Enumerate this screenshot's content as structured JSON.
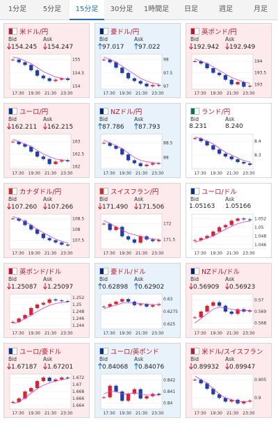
{
  "tabs": {
    "items": [
      "1分足",
      "5分足",
      "15分足",
      "30分足",
      "1時間足",
      "日足",
      "週足",
      "月足"
    ],
    "active": 2
  },
  "bid_label": "Bid",
  "ask_label": "Ask",
  "x_labels": [
    "17:30",
    "19:30",
    "21:30",
    "23:30"
  ],
  "cards": [
    {
      "name": "米ドル/円",
      "trend": "down",
      "bid": "154.245",
      "ask": "154.247",
      "ylim": [
        153.9,
        155.2
      ],
      "yticks": [
        155,
        154.5,
        154
      ],
      "closes": [
        155.0,
        154.9,
        154.8,
        154.6,
        154.4,
        154.3,
        154.2,
        154.25,
        154.3,
        154.24
      ],
      "ma": [
        155.1,
        155.05,
        154.95,
        154.85,
        154.7,
        154.55,
        154.45,
        154.35,
        154.3,
        154.28
      ]
    },
    {
      "name": "豪ドル/円",
      "trend": "up",
      "bid": "97.017",
      "ask": "97.022",
      "ylim": [
        96.9,
        98.2
      ],
      "yticks": [
        98,
        97.5,
        97
      ],
      "closes": [
        98.0,
        97.9,
        97.7,
        97.5,
        97.3,
        97.2,
        97.1,
        97.0,
        97.05,
        97.02
      ],
      "ma": [
        98.1,
        98.0,
        97.9,
        97.75,
        97.6,
        97.45,
        97.3,
        97.2,
        97.12,
        97.08
      ]
    },
    {
      "name": "英ポンド/円",
      "trend": "down",
      "bid": "192.942",
      "ask": "192.949",
      "ylim": [
        192.8,
        194.3
      ],
      "yticks": [
        194,
        193.5,
        193
      ],
      "closes": [
        194.0,
        193.9,
        193.7,
        193.5,
        193.4,
        193.2,
        193.0,
        193.1,
        192.9,
        192.94
      ],
      "ma": [
        194.1,
        194.0,
        193.9,
        193.75,
        193.6,
        193.45,
        193.3,
        193.2,
        193.1,
        193.05
      ]
    },
    {
      "name": "ユーロ/円",
      "trend": "down",
      "bid": "162.211",
      "ask": "162.215",
      "ylim": [
        161.9,
        163.3
      ],
      "yticks": [
        163,
        162.5,
        162
      ],
      "closes": [
        163.0,
        162.9,
        162.8,
        162.6,
        162.4,
        162.3,
        162.1,
        162.2,
        162.25,
        162.21
      ],
      "ma": [
        163.1,
        163.0,
        162.9,
        162.8,
        162.65,
        162.5,
        162.4,
        162.3,
        162.27,
        162.25
      ]
    },
    {
      "name": "NZドル/円",
      "trend": "up",
      "bid": "87.786",
      "ask": "87.793",
      "ylim": [
        87.6,
        88.8
      ],
      "yticks": [
        88.5,
        88
      ],
      "closes": [
        88.5,
        88.4,
        88.3,
        88.1,
        87.9,
        87.8,
        87.7,
        87.75,
        87.8,
        87.79
      ],
      "ma": [
        88.6,
        88.5,
        88.4,
        88.3,
        88.15,
        88.0,
        87.9,
        87.85,
        87.82,
        87.8
      ]
    },
    {
      "name": "ランド/円",
      "trend": "flat",
      "bid": "8.231",
      "ask": "8.240",
      "ylim": [
        8.2,
        8.45
      ],
      "yticks": [
        8.4,
        8.3
      ],
      "closes": [
        8.42,
        8.4,
        8.37,
        8.34,
        8.31,
        8.29,
        8.27,
        8.25,
        8.24,
        8.23
      ],
      "ma": [
        8.43,
        8.42,
        8.4,
        8.38,
        8.35,
        8.32,
        8.3,
        8.28,
        8.26,
        8.25
      ]
    },
    {
      "name": "カナダドル/円",
      "trend": "down",
      "bid": "107.260",
      "ask": "107.266",
      "ylim": [
        107.1,
        108.7
      ],
      "yticks": [
        108.5,
        108,
        107.5
      ],
      "closes": [
        108.5,
        108.4,
        108.2,
        108.0,
        107.8,
        107.6,
        107.5,
        107.4,
        107.3,
        107.26
      ],
      "ma": [
        108.6,
        108.5,
        108.35,
        108.2,
        108.0,
        107.85,
        107.7,
        107.55,
        107.45,
        107.38
      ]
    },
    {
      "name": "スイスフラン/円",
      "trend": "down",
      "bid": "171.490",
      "ask": "171.506",
      "ylim": [
        171.2,
        172.3
      ],
      "yticks": [
        172,
        171.5
      ],
      "closes": [
        172.0,
        171.8,
        171.9,
        171.6,
        171.5,
        171.4,
        171.6,
        171.5,
        171.45,
        171.49
      ],
      "ma": [
        172.1,
        172.0,
        171.9,
        171.8,
        171.7,
        171.65,
        171.6,
        171.55,
        171.52,
        171.5
      ]
    },
    {
      "name": "ユーロ/ドル",
      "trend": "flat",
      "bid": "1.05163",
      "ask": "1.05166",
      "ylim": [
        1.045,
        1.053
      ],
      "yticks": [
        1.052,
        1.05,
        1.048,
        1.046
      ],
      "closes": [
        1.047,
        1.0475,
        1.048,
        1.049,
        1.05,
        1.0505,
        1.0515,
        1.052,
        1.0518,
        1.0516
      ],
      "ma": [
        1.0465,
        1.047,
        1.0475,
        1.048,
        1.0488,
        1.0495,
        1.0502,
        1.0508,
        1.0512,
        1.0514
      ]
    },
    {
      "name": "英ポンド/ドル",
      "trend": "down",
      "bid": "1.25087",
      "ask": "1.25097",
      "ylim": [
        1.243,
        1.253
      ],
      "yticks": [
        1.252,
        1.25,
        1.248,
        1.246,
        1.244
      ],
      "closes": [
        1.245,
        1.246,
        1.247,
        1.249,
        1.25,
        1.2505,
        1.2515,
        1.2512,
        1.251,
        1.2509
      ],
      "ma": [
        1.2445,
        1.245,
        1.246,
        1.247,
        1.248,
        1.249,
        1.2498,
        1.2503,
        1.2506,
        1.2507
      ]
    },
    {
      "name": "豪ドル/ドル",
      "trend": "up",
      "bid": "0.62898",
      "ask": "0.62902",
      "ylim": [
        0.624,
        0.631
      ],
      "yticks": [
        0.63,
        0.6275,
        0.625
      ],
      "closes": [
        0.6285,
        0.629,
        0.6295,
        0.63,
        0.6295,
        0.6288,
        0.629,
        0.6285,
        0.6288,
        0.629
      ],
      "ma": [
        0.628,
        0.6285,
        0.6288,
        0.6292,
        0.6293,
        0.6292,
        0.6291,
        0.629,
        0.6289,
        0.6289
      ]
    },
    {
      "name": "NZドル/ドル",
      "trend": "down",
      "bid": "0.56909",
      "ask": "0.56923",
      "ylim": [
        0.5675,
        0.5705
      ],
      "yticks": [
        0.57,
        0.569,
        0.568
      ],
      "closes": [
        0.5685,
        0.569,
        0.5695,
        0.5698,
        0.5695,
        0.569,
        0.5688,
        0.5692,
        0.569,
        0.5691
      ],
      "ma": [
        0.568,
        0.5684,
        0.5688,
        0.5692,
        0.5694,
        0.5693,
        0.5692,
        0.5691,
        0.5691,
        0.5691
      ]
    },
    {
      "name": "ユーロ/豪ドル",
      "trend": "down",
      "bid": "1.67187",
      "ask": "1.67201",
      "ylim": [
        1.663,
        1.673
      ],
      "yticks": [
        1.672,
        1.67,
        1.668,
        1.666,
        1.664
      ],
      "closes": [
        1.665,
        1.666,
        1.668,
        1.669,
        1.671,
        1.672,
        1.671,
        1.6715,
        1.672,
        1.6719
      ],
      "ma": [
        1.6645,
        1.665,
        1.6662,
        1.6675,
        1.6688,
        1.6698,
        1.6705,
        1.671,
        1.6714,
        1.6717
      ]
    },
    {
      "name": "ユーロ/英ポンド",
      "trend": "up",
      "bid": "0.84068",
      "ask": "0.84076",
      "ylim": [
        0.8395,
        0.8425
      ],
      "yticks": [
        0.842,
        0.841,
        0.84
      ],
      "closes": [
        0.8405,
        0.8415,
        0.841,
        0.8402,
        0.8408,
        0.8412,
        0.8404,
        0.8406,
        0.8408,
        0.8407
      ],
      "ma": [
        0.8408,
        0.841,
        0.841,
        0.8408,
        0.8408,
        0.8409,
        0.8408,
        0.8407,
        0.8407,
        0.8407
      ]
    },
    {
      "name": "米ドル/スイスフラン",
      "trend": "down",
      "bid": "0.89932",
      "ask": "0.89947",
      "ylim": [
        0.897,
        0.9065
      ],
      "yticks": [
        0.905,
        0.9
      ],
      "closes": [
        0.905,
        0.904,
        0.9025,
        0.901,
        0.9,
        0.899,
        0.8995,
        0.8985,
        0.899,
        0.8993
      ],
      "ma": [
        0.906,
        0.905,
        0.904,
        0.9025,
        0.901,
        0.9,
        0.8995,
        0.899,
        0.899,
        0.8991
      ]
    }
  ]
}
